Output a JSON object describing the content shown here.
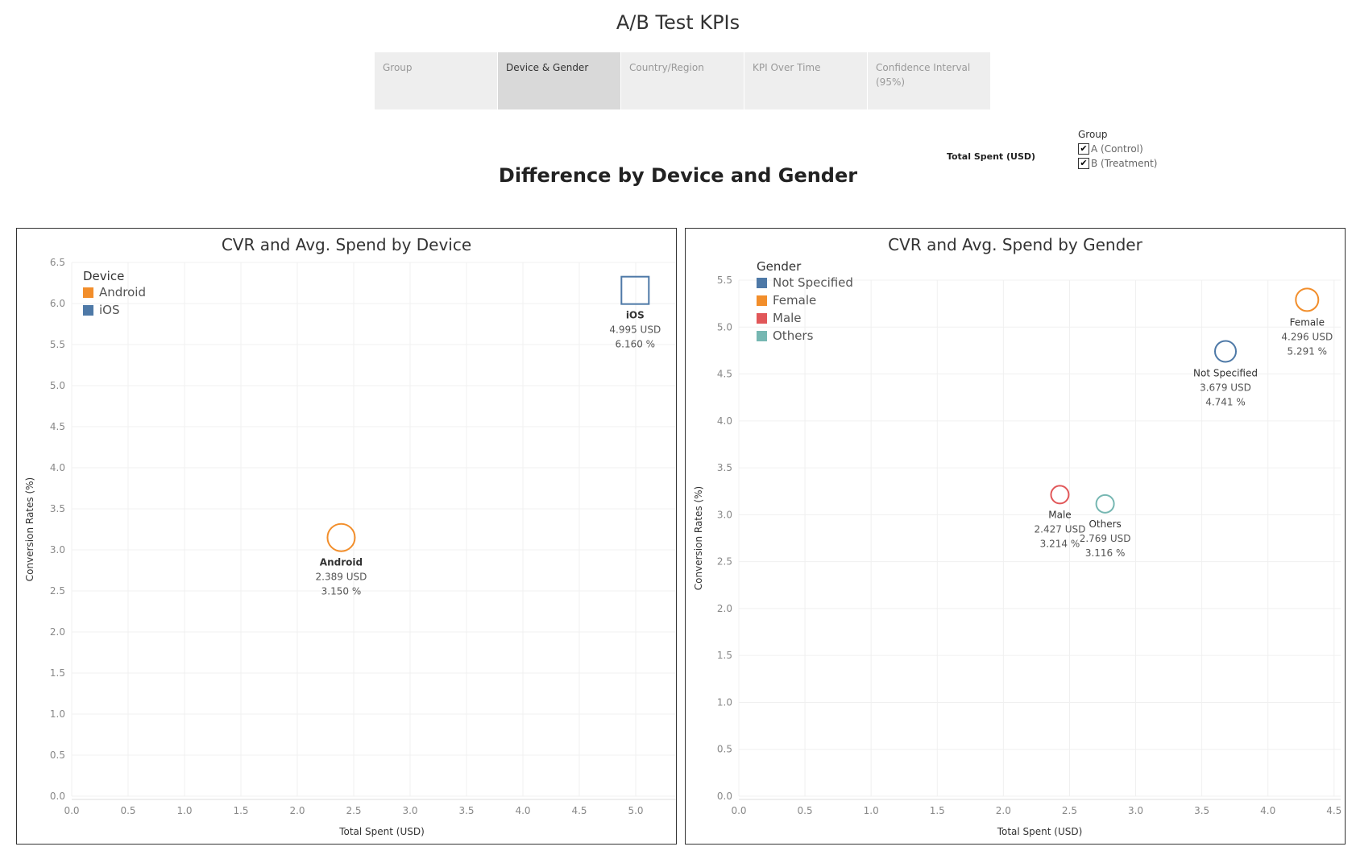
{
  "app_title": "A/B Test KPIs",
  "tabs": [
    {
      "label": "Group",
      "active": false
    },
    {
      "label": "Device & Gender",
      "active": true
    },
    {
      "label": "Country/Region",
      "active": false
    },
    {
      "label": "KPI Over Time",
      "active": false
    },
    {
      "label": "Confidence Interval (95%)",
      "active": false
    }
  ],
  "section_title": "Difference by Device and Gender",
  "filter_label": "Total Spent (USD)",
  "group_legend": {
    "title": "Group",
    "items": [
      {
        "label": "A (Control)",
        "checked": true,
        "check": "✔"
      },
      {
        "label": "B (Treatment)",
        "checked": true,
        "check": "✔"
      }
    ]
  },
  "chart_data": [
    {
      "type": "scatter",
      "title": "CVR and Avg. Spend by Device",
      "xlabel": "Total Spent (USD)",
      "ylabel": "Conversion Rates (%)",
      "xlim": [
        0,
        5.5
      ],
      "ylim": [
        0,
        6.5
      ],
      "xticks": [
        "0.0",
        "0.5",
        "1.0",
        "1.5",
        "2.0",
        "2.5",
        "3.0",
        "3.5",
        "4.0",
        "4.5",
        "5.0"
      ],
      "yticks": [
        "0.0",
        "0.5",
        "1.0",
        "1.5",
        "2.0",
        "2.5",
        "3.0",
        "3.5",
        "4.0",
        "4.5",
        "5.0",
        "5.5",
        "6.0",
        "6.5"
      ],
      "grid": true,
      "legend": {
        "title": "Device",
        "position": "top-left"
      },
      "series": [
        {
          "name": "Android",
          "color": "#f28e2b",
          "marker": "circle",
          "x": 2.389,
          "y": 3.15,
          "label": "Android",
          "x_label": "2.389 USD",
          "y_label": "3.150 %"
        },
        {
          "name": "iOS",
          "color": "#4e79a7",
          "marker": "square",
          "x": 4.995,
          "y": 6.16,
          "label": "iOS",
          "x_label": "4.995 USD",
          "y_label": "6.160 %"
        }
      ]
    },
    {
      "type": "scatter",
      "title": "CVR and Avg. Spend by Gender",
      "xlabel": "Total Spent (USD)",
      "ylabel": "Conversion Rates (%)",
      "xlim": [
        0,
        4.55
      ],
      "ylim": [
        0,
        5.5
      ],
      "xticks": [
        "0.0",
        "0.5",
        "1.0",
        "1.5",
        "2.0",
        "2.5",
        "3.0",
        "3.5",
        "4.0",
        "4.5"
      ],
      "yticks": [
        "0.0",
        "0.5",
        "1.0",
        "1.5",
        "2.0",
        "2.5",
        "3.0",
        "3.5",
        "4.0",
        "4.5",
        "5.0",
        "5.5"
      ],
      "grid": true,
      "legend": {
        "title": "Gender",
        "position": "top-left"
      },
      "series": [
        {
          "name": "Not Specified",
          "color": "#4e79a7",
          "marker": "circle",
          "x": 3.679,
          "y": 4.741,
          "label": "Not Specified",
          "x_label": "3.679 USD",
          "y_label": "4.741 %"
        },
        {
          "name": "Female",
          "color": "#f28e2b",
          "marker": "circle",
          "x": 4.296,
          "y": 5.291,
          "label": "Female",
          "x_label": "4.296 USD",
          "y_label": "5.291 %"
        },
        {
          "name": "Male",
          "color": "#e15759",
          "marker": "circle",
          "x": 2.427,
          "y": 3.214,
          "label": "Male",
          "x_label": "2.427 USD",
          "y_label": "3.214 %"
        },
        {
          "name": "Others",
          "color": "#76b7b2",
          "marker": "circle",
          "x": 2.769,
          "y": 3.116,
          "label": "Others",
          "x_label": "2.769 USD",
          "y_label": "3.116 %"
        }
      ]
    }
  ]
}
